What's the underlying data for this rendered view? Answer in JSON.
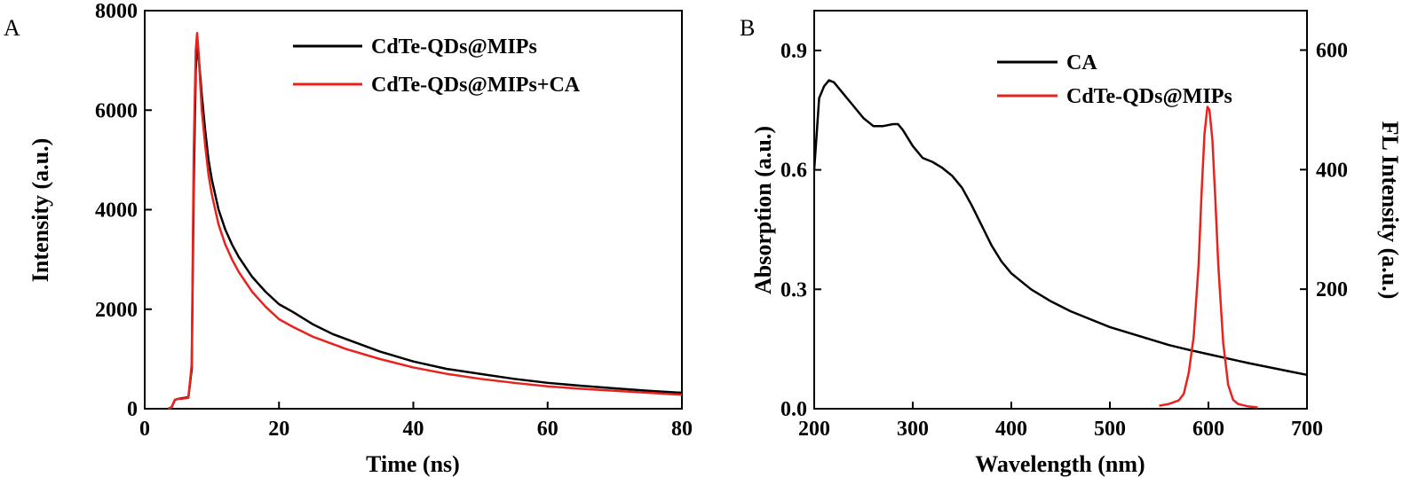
{
  "chart_data": [
    {
      "panel_label": "A",
      "type": "line",
      "xlabel": "Time (ns)",
      "ylabel": "Intensity (a.u.)",
      "xlim": [
        0,
        80
      ],
      "ylim": [
        0,
        8000
      ],
      "xticks": [
        0,
        20,
        40,
        60,
        80
      ],
      "yticks": [
        0,
        2000,
        4000,
        6000,
        8000
      ],
      "grid": false,
      "legend_position": "top-right",
      "series": [
        {
          "name": "CdTe-QDs@MIPs",
          "color": "#000000",
          "x": [
            3.5,
            4,
            4.5,
            5,
            5.5,
            6,
            6.5,
            7,
            7.3,
            7.6,
            7.8,
            8,
            8.2,
            8.5,
            9,
            9.5,
            10,
            11,
            12,
            13,
            14,
            15,
            16,
            18,
            20,
            22,
            25,
            28,
            30,
            35,
            40,
            45,
            50,
            55,
            60,
            65,
            70,
            75,
            80
          ],
          "y": [
            0,
            30,
            180,
            200,
            210,
            220,
            230,
            800,
            4500,
            6800,
            7250,
            7150,
            6800,
            6300,
            5600,
            5000,
            4600,
            4000,
            3600,
            3300,
            3050,
            2850,
            2650,
            2350,
            2100,
            1950,
            1700,
            1500,
            1400,
            1150,
            950,
            800,
            700,
            600,
            520,
            460,
            410,
            360,
            320
          ]
        },
        {
          "name": "CdTe-QDs@MIPs+CA",
          "color": "#e8231e",
          "x": [
            3.5,
            4,
            4.5,
            5,
            5.5,
            6,
            6.5,
            7,
            7.3,
            7.6,
            7.8,
            8,
            8.2,
            8.5,
            9,
            9.5,
            10,
            11,
            12,
            13,
            14,
            15,
            16,
            18,
            20,
            22,
            25,
            28,
            30,
            35,
            40,
            45,
            50,
            55,
            60,
            65,
            70,
            75,
            80
          ],
          "y": [
            0,
            30,
            180,
            200,
            200,
            210,
            220,
            900,
            5200,
            7200,
            7550,
            7200,
            6700,
            6000,
            5300,
            4700,
            4300,
            3700,
            3300,
            3000,
            2750,
            2550,
            2350,
            2050,
            1800,
            1650,
            1450,
            1300,
            1200,
            1000,
            830,
            700,
            600,
            520,
            450,
            400,
            360,
            320,
            280
          ]
        }
      ]
    },
    {
      "panel_label": "B",
      "type": "line",
      "xlabel": "Wavelength (nm)",
      "ylabel": "Absorption (a.u.)",
      "ylabel_right": "FL Intensity (a.u.)",
      "xlim": [
        200,
        700
      ],
      "ylim": [
        0,
        1.0
      ],
      "ylim_right": [
        0,
        666
      ],
      "xticks": [
        200,
        300,
        400,
        500,
        600,
        700
      ],
      "yticks": [
        "0.0",
        "0.3",
        "0.6",
        "0.9"
      ],
      "yticks_right": [
        200,
        400,
        600
      ],
      "grid": false,
      "legend_position": "top-right",
      "series": [
        {
          "name": "CA",
          "color": "#000000",
          "axis": "left",
          "x": [
            200,
            205,
            210,
            215,
            220,
            230,
            240,
            250,
            260,
            270,
            280,
            285,
            290,
            300,
            310,
            320,
            330,
            340,
            350,
            360,
            370,
            380,
            390,
            400,
            420,
            440,
            460,
            480,
            500,
            520,
            540,
            560,
            580,
            600,
            620,
            640,
            660,
            680,
            700
          ],
          "y": [
            0.6,
            0.78,
            0.81,
            0.825,
            0.82,
            0.79,
            0.76,
            0.73,
            0.71,
            0.71,
            0.715,
            0.715,
            0.7,
            0.66,
            0.63,
            0.62,
            0.605,
            0.585,
            0.555,
            0.51,
            0.46,
            0.41,
            0.37,
            0.34,
            0.3,
            0.27,
            0.245,
            0.225,
            0.205,
            0.19,
            0.175,
            0.16,
            0.148,
            0.137,
            0.126,
            0.115,
            0.105,
            0.095,
            0.085
          ]
        },
        {
          "name": "CdTe-QDs@MIPs",
          "color": "#e8231e",
          "axis": "right",
          "x": [
            550,
            560,
            570,
            575,
            580,
            585,
            590,
            593,
            596,
            599,
            601,
            604,
            607,
            610,
            615,
            620,
            625,
            630,
            640,
            650
          ],
          "y": [
            5,
            8,
            14,
            25,
            60,
            120,
            240,
            360,
            460,
            505,
            500,
            450,
            350,
            240,
            110,
            40,
            15,
            8,
            4,
            2
          ]
        }
      ]
    }
  ]
}
